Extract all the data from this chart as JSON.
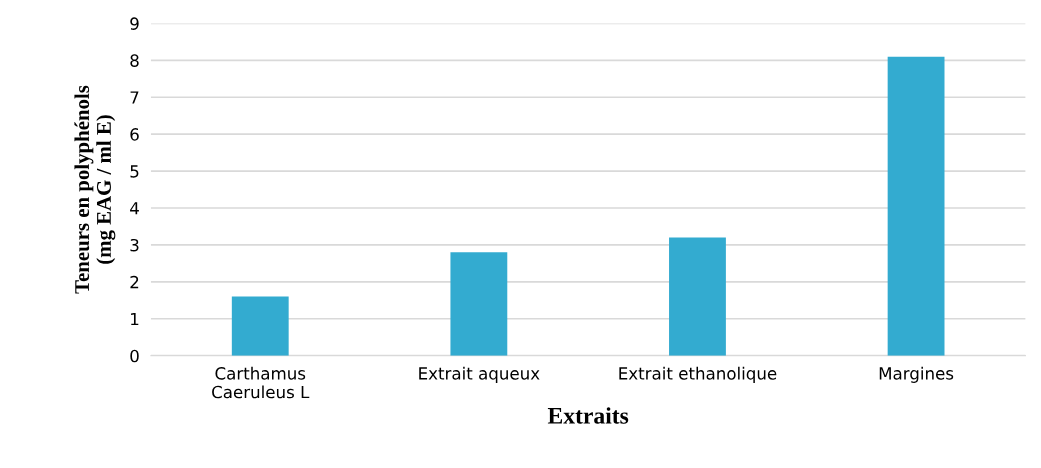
{
  "chart_data": {
    "type": "bar",
    "xlabel": "Extraits",
    "ylabel": "Teneurs en polyphénols\n(mg EAG / ml E)",
    "categories": [
      "Carthamus\nCaeruleus L",
      "Extrait aqueux",
      "Extrait ethanolique",
      "Margines"
    ],
    "values": [
      1.6,
      2.8,
      3.2,
      8.1
    ],
    "color": "#33abd0",
    "ylim": [
      0,
      9
    ],
    "yticks": [
      0,
      1,
      2,
      3,
      4,
      5,
      6,
      7,
      8,
      9
    ],
    "grid": "y"
  }
}
